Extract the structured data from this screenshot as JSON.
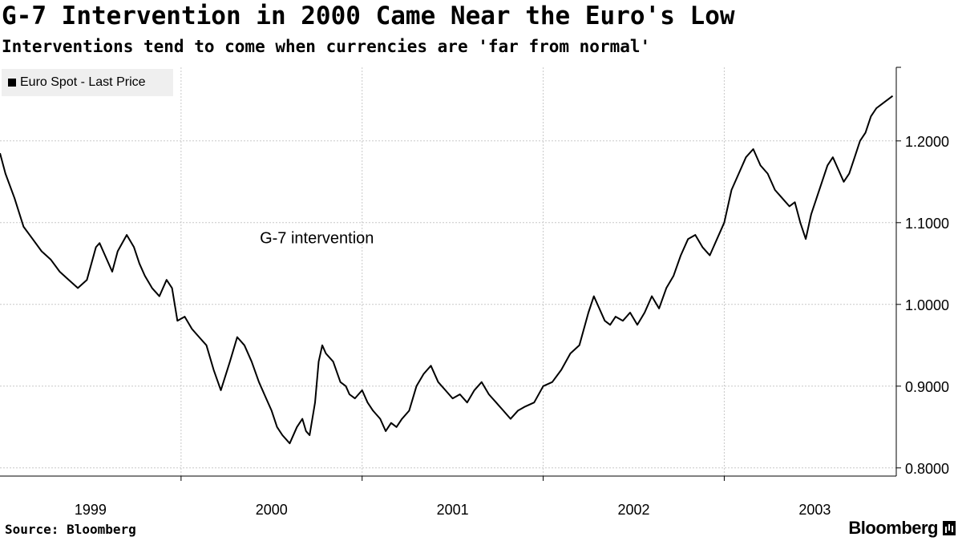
{
  "title": "G-7 Intervention in 2000 Came Near the Euro's Low",
  "subtitle": "Interventions tend to come when currencies are 'far from normal'",
  "legend": {
    "label": "Euro Spot - Last Price",
    "color": "#000000"
  },
  "source": "Source: Bloomberg",
  "brand": "Bloomberg",
  "chart_data": {
    "type": "line",
    "title": "G-7 Intervention in 2000 Came Near the Euro's Low",
    "subtitle": "Interventions tend to come when currencies are 'far from normal'",
    "y_axis_position": "right",
    "ylim": [
      0.79,
      1.29
    ],
    "yticks": [
      0.8,
      0.9,
      1.0,
      1.1,
      1.2
    ],
    "ytick_labels": [
      "0.8000",
      "0.9000",
      "1.0000",
      "1.1000",
      "1.2000"
    ],
    "xlim": [
      1999.0,
      2003.95
    ],
    "xtick_labels": [
      {
        "label": "1999",
        "x": 1999.5
      },
      {
        "label": "2000",
        "x": 2000.5
      },
      {
        "label": "2001",
        "x": 2001.5
      },
      {
        "label": "2002",
        "x": 2002.5
      },
      {
        "label": "2003",
        "x": 2003.5
      }
    ],
    "year_boundaries": [
      2000,
      2001,
      2002,
      2003
    ],
    "grid": true,
    "legend_position": "top-left",
    "annotations": [
      {
        "text": "G-7 intervention",
        "x": 2000.75,
        "y": 1.075
      }
    ],
    "series": [
      {
        "name": "Euro Spot - Last Price",
        "color": "#000000",
        "x": [
          1999.0,
          1999.03,
          1999.08,
          1999.13,
          1999.18,
          1999.23,
          1999.28,
          1999.33,
          1999.38,
          1999.43,
          1999.48,
          1999.53,
          1999.55,
          1999.58,
          1999.62,
          1999.65,
          1999.7,
          1999.74,
          1999.77,
          1999.8,
          1999.84,
          1999.88,
          1999.92,
          1999.95,
          1999.98,
          2000.02,
          2000.06,
          2000.1,
          2000.14,
          2000.18,
          2000.22,
          2000.27,
          2000.31,
          2000.35,
          2000.39,
          2000.43,
          2000.47,
          2000.5,
          2000.53,
          2000.56,
          2000.6,
          2000.64,
          2000.67,
          2000.69,
          2000.71,
          2000.74,
          2000.76,
          2000.78,
          2000.8,
          2000.84,
          2000.88,
          2000.91,
          2000.93,
          2000.96,
          2001.0,
          2001.03,
          2001.06,
          2001.1,
          2001.13,
          2001.16,
          2001.19,
          2001.22,
          2001.26,
          2001.3,
          2001.34,
          2001.38,
          2001.42,
          2001.46,
          2001.5,
          2001.54,
          2001.58,
          2001.62,
          2001.66,
          2001.7,
          2001.74,
          2001.78,
          2001.82,
          2001.86,
          2001.9,
          2001.95,
          2002.0,
          2002.05,
          2002.1,
          2002.15,
          2002.2,
          2002.25,
          2002.28,
          2002.31,
          2002.34,
          2002.37,
          2002.4,
          2002.44,
          2002.48,
          2002.52,
          2002.56,
          2002.6,
          2002.64,
          2002.68,
          2002.72,
          2002.76,
          2002.8,
          2002.84,
          2002.88,
          2002.92,
          2002.96,
          2003.0,
          2003.04,
          2003.08,
          2003.12,
          2003.16,
          2003.2,
          2003.24,
          2003.28,
          2003.32,
          2003.36,
          2003.39,
          2003.42,
          2003.45,
          2003.48,
          2003.51,
          2003.54,
          2003.57,
          2003.6,
          2003.63,
          2003.66,
          2003.69,
          2003.72,
          2003.75,
          2003.78,
          2003.81,
          2003.84,
          2003.87,
          2003.9,
          2003.93
        ],
        "y": [
          1.185,
          1.16,
          1.13,
          1.095,
          1.08,
          1.065,
          1.055,
          1.04,
          1.03,
          1.02,
          1.03,
          1.07,
          1.075,
          1.06,
          1.04,
          1.065,
          1.085,
          1.07,
          1.05,
          1.035,
          1.02,
          1.01,
          1.03,
          1.02,
          0.98,
          0.985,
          0.97,
          0.96,
          0.95,
          0.92,
          0.895,
          0.93,
          0.96,
          0.95,
          0.93,
          0.905,
          0.885,
          0.87,
          0.85,
          0.84,
          0.83,
          0.85,
          0.86,
          0.845,
          0.84,
          0.88,
          0.93,
          0.95,
          0.94,
          0.93,
          0.905,
          0.9,
          0.89,
          0.885,
          0.895,
          0.88,
          0.87,
          0.86,
          0.845,
          0.855,
          0.85,
          0.86,
          0.87,
          0.9,
          0.915,
          0.925,
          0.905,
          0.895,
          0.885,
          0.89,
          0.88,
          0.895,
          0.905,
          0.89,
          0.88,
          0.87,
          0.86,
          0.87,
          0.875,
          0.88,
          0.9,
          0.905,
          0.92,
          0.94,
          0.95,
          0.99,
          1.01,
          0.995,
          0.98,
          0.975,
          0.985,
          0.98,
          0.99,
          0.975,
          0.99,
          1.01,
          0.995,
          1.02,
          1.035,
          1.06,
          1.08,
          1.085,
          1.07,
          1.06,
          1.08,
          1.1,
          1.14,
          1.16,
          1.18,
          1.19,
          1.17,
          1.16,
          1.14,
          1.13,
          1.12,
          1.125,
          1.1,
          1.08,
          1.11,
          1.13,
          1.15,
          1.17,
          1.18,
          1.165,
          1.15,
          1.16,
          1.18,
          1.2,
          1.21,
          1.23,
          1.24,
          1.245,
          1.25,
          1.255
        ]
      }
    ]
  }
}
